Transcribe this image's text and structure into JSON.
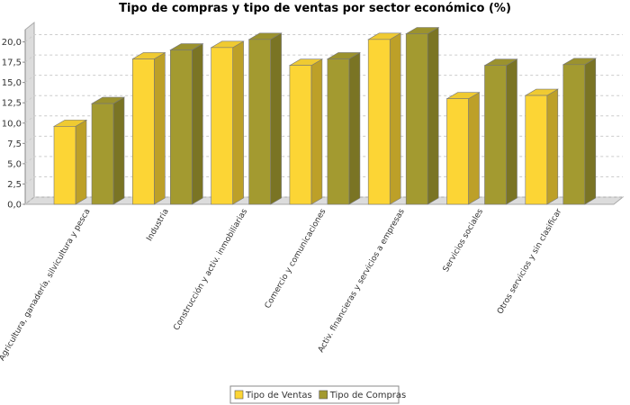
{
  "chart_data": {
    "type": "bar3d",
    "title": "Tipo de compras y tipo de ventas por sector económico (%)",
    "categories": [
      "Agricultura, ganadería, silvicultura y pesca",
      "Industria",
      "Construcción y activ. inmobiliarias",
      "Comercio y comunicaciones",
      "Activ. financieras y servicios a empresas",
      "Servicios sociales",
      "Otros servicios y sin clasificar"
    ],
    "series": [
      {
        "name": "Tipo de Ventas",
        "color": "#fcd535",
        "values": [
          9.6,
          17.9,
          19.3,
          17.1,
          20.3,
          13.0,
          13.4
        ]
      },
      {
        "name": "Tipo de Compras",
        "color": "#a39a30",
        "values": [
          12.4,
          19.0,
          20.3,
          17.9,
          21.0,
          17.1,
          17.2
        ]
      }
    ],
    "ylim": [
      0,
      21.5
    ],
    "yticks": [
      {
        "value": 0,
        "label": "0,0"
      },
      {
        "value": 2.5,
        "label": "2,5"
      },
      {
        "value": 5,
        "label": "5,0"
      },
      {
        "value": 7.5,
        "label": "7,5"
      },
      {
        "value": 10,
        "label": "10,0"
      },
      {
        "value": 12.5,
        "label": "12,5"
      },
      {
        "value": 15,
        "label": "15,0"
      },
      {
        "value": 17.5,
        "label": "17,5"
      },
      {
        "value": 20,
        "label": "20,0"
      }
    ],
    "grid": true
  }
}
